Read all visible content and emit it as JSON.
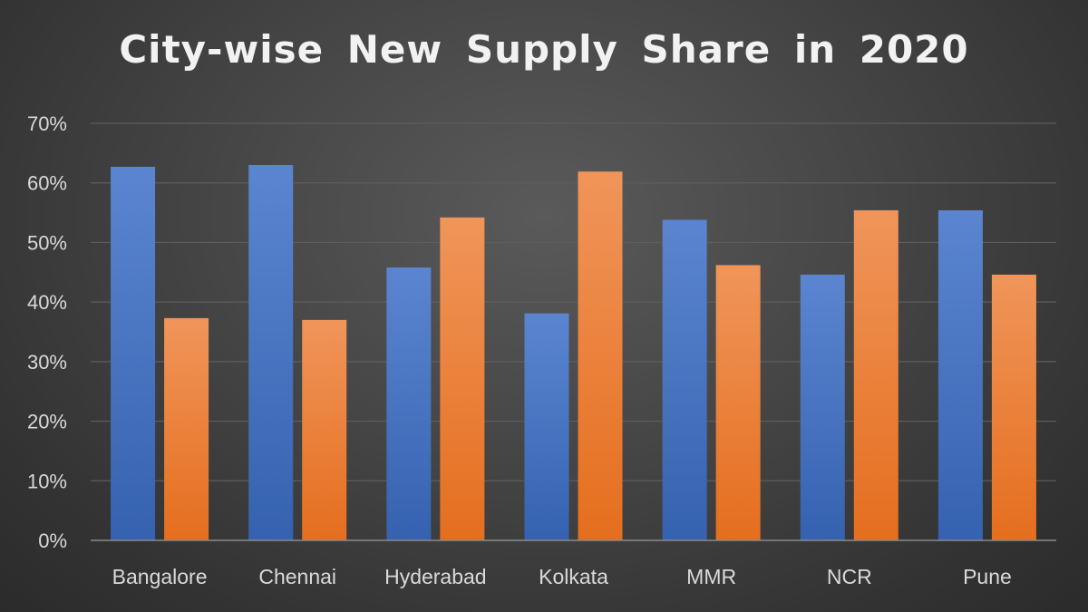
{
  "chart_data": {
    "type": "bar",
    "title": "City-wise  New Supply Share in 2020",
    "categories": [
      "Bangalore",
      "Chennai",
      "Hyderabad",
      "Kolkata",
      "MMR",
      "NCR",
      "Pune"
    ],
    "series": [
      {
        "color": "#4472c4",
        "values": [
          62.7,
          63.0,
          45.8,
          38.1,
          53.8,
          44.6,
          55.4
        ]
      },
      {
        "color": "#ed7d31",
        "values": [
          37.3,
          37.0,
          54.2,
          61.9,
          46.2,
          55.4,
          44.6
        ]
      }
    ],
    "yticks": [
      "0%",
      "10%",
      "20%",
      "30%",
      "40%",
      "50%",
      "60%",
      "70%"
    ],
    "ylim": [
      0,
      70
    ],
    "xlabel": "",
    "ylabel": "",
    "grid": true,
    "legend": "none"
  }
}
